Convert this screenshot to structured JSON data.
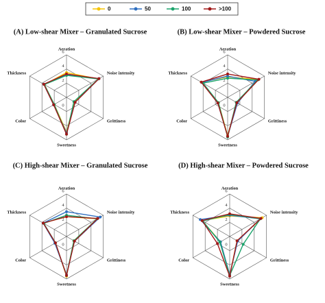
{
  "chart_data": [
    {
      "type": "radar",
      "title": "(A) Low-shear Mixer – Granulated Sucrose",
      "categories": [
        "Aeration",
        "Noise intensity",
        "Grittiness",
        "Sweetness",
        "Color",
        "Thickness"
      ],
      "rlim": [
        0,
        6
      ],
      "rticks": [
        0,
        2,
        4,
        6
      ],
      "series": [
        {
          "name": "0",
          "color": "#f5c400",
          "values": [
            3.5,
            5.2,
            1.3,
            4.9,
            2.0,
            3.6
          ]
        },
        {
          "name": "50",
          "color": "#2e6fc0",
          "values": [
            3.2,
            5.3,
            1.4,
            5.0,
            2.1,
            3.7
          ]
        },
        {
          "name": "100",
          "color": "#1aa36b",
          "values": [
            3.1,
            5.2,
            1.2,
            5.2,
            2.0,
            3.6
          ]
        },
        {
          "name": ">100",
          "color": "#a01818",
          "values": [
            3.3,
            5.3,
            1.4,
            5.2,
            2.1,
            3.7
          ]
        }
      ]
    },
    {
      "type": "radar",
      "title": "(B) Low-shear Mixer – Powdered Sucrose",
      "categories": [
        "Aeration",
        "Noise intensity",
        "Grittiness",
        "Sweetness",
        "Color",
        "Thickness"
      ],
      "rlim": [
        0,
        6
      ],
      "rticks": [
        0,
        2,
        4,
        6
      ],
      "series": [
        {
          "name": "0",
          "color": "#f5c400",
          "values": [
            2.9,
            5.0,
            1.5,
            5.4,
            1.5,
            4.3
          ]
        },
        {
          "name": "50",
          "color": "#2e6fc0",
          "values": [
            3.0,
            4.5,
            1.6,
            5.5,
            1.6,
            4.2
          ]
        },
        {
          "name": "100",
          "color": "#1aa36b",
          "values": [
            2.7,
            4.9,
            1.4,
            5.6,
            1.5,
            4.0
          ]
        },
        {
          "name": ">100",
          "color": "#a01818",
          "values": [
            3.3,
            5.1,
            1.5,
            5.5,
            1.6,
            4.3
          ]
        }
      ]
    },
    {
      "type": "radar",
      "title": "(C) High-shear Mixer – Granulated Sucrose",
      "categories": [
        "Aeration",
        "Noise intensity",
        "Grittiness",
        "Sweetness",
        "Color",
        "Thickness"
      ],
      "rlim": [
        0,
        6
      ],
      "rticks": [
        0,
        2,
        4,
        6
      ],
      "series": [
        {
          "name": "0",
          "color": "#f5c400",
          "values": [
            2.8,
            5.0,
            1.2,
            5.6,
            1.8,
            3.8
          ]
        },
        {
          "name": "50",
          "color": "#2e6fc0",
          "values": [
            3.5,
            5.5,
            1.3,
            5.4,
            1.9,
            3.8
          ]
        },
        {
          "name": "100",
          "color": "#1aa36b",
          "values": [
            3.0,
            5.0,
            1.2,
            5.5,
            1.8,
            3.7
          ]
        },
        {
          "name": ">100",
          "color": "#a01818",
          "values": [
            2.8,
            5.1,
            1.3,
            5.5,
            1.8,
            3.8
          ]
        }
      ]
    },
    {
      "type": "radar",
      "title": "(D) High-shear Mixer – Powdered Sucrose",
      "categories": [
        "Aeration",
        "Noise intensity",
        "Grittiness",
        "Sweetness",
        "Color",
        "Thickness"
      ],
      "rlim": [
        0,
        6
      ],
      "rticks": [
        0,
        2,
        4,
        6
      ],
      "series": [
        {
          "name": "0",
          "color": "#f5c400",
          "values": [
            2.9,
            5.3,
            1.2,
            5.5,
            1.5,
            4.5
          ]
        },
        {
          "name": "50",
          "color": "#2e6fc0",
          "values": [
            3.0,
            5.0,
            1.3,
            5.4,
            1.5,
            4.8
          ]
        },
        {
          "name": "100",
          "color": "#1aa36b",
          "values": [
            3.1,
            5.0,
            2.2,
            5.5,
            1.6,
            4.4
          ]
        },
        {
          "name": ">100",
          "color": "#a01818",
          "values": [
            3.2,
            5.1,
            1.2,
            5.6,
            2.0,
            4.5
          ]
        }
      ]
    }
  ]
}
